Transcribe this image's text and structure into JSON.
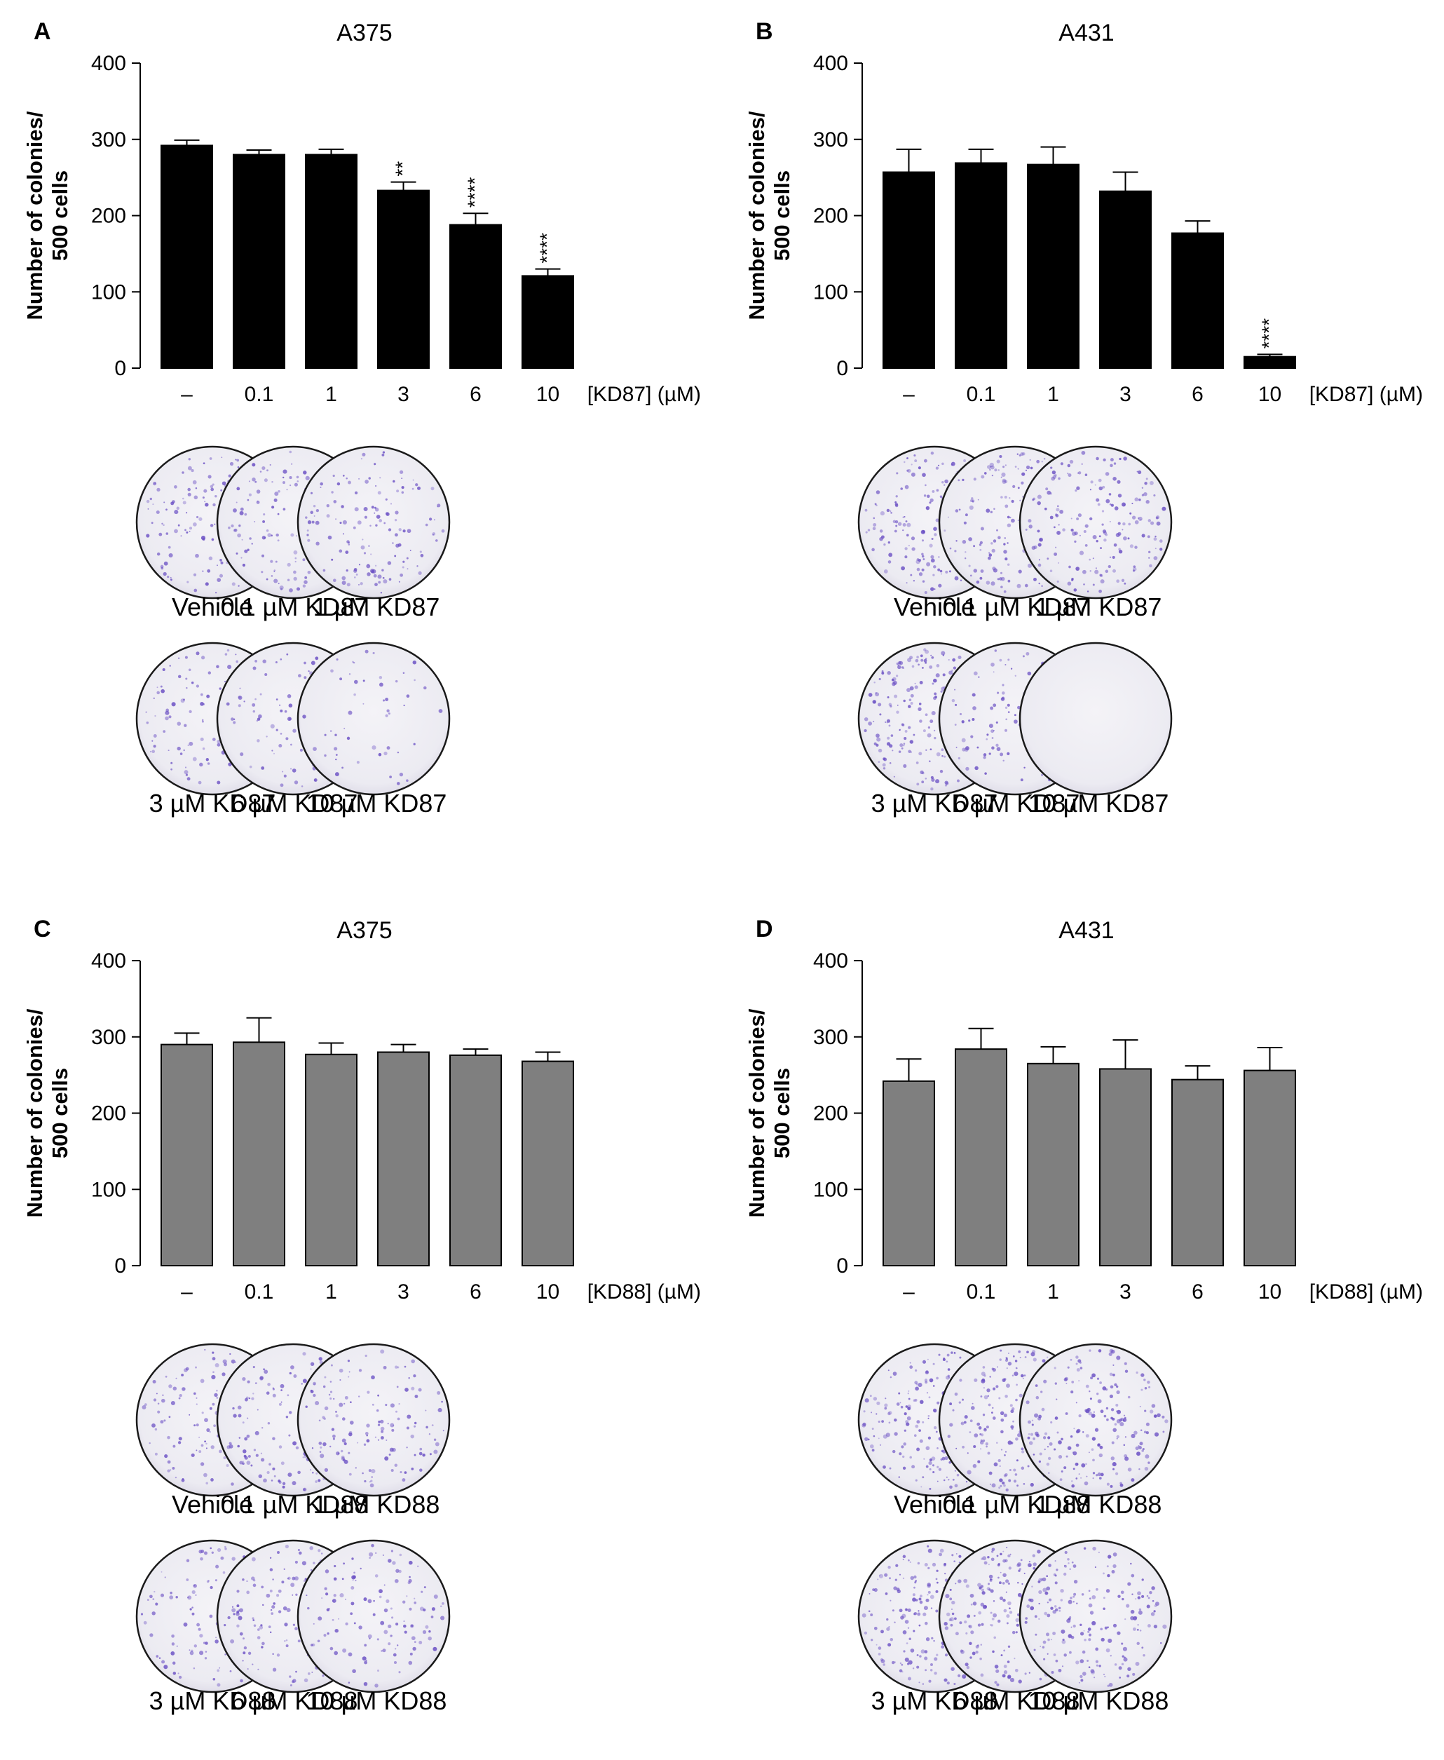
{
  "chart_data": [
    {
      "panel": "A",
      "type": "bar",
      "title": "A375",
      "ylabel_lines": [
        "Number of colonies/",
        "500 cells"
      ],
      "xlabel": "[KD87] (µM)",
      "categories": [
        "–",
        "0.1",
        "1",
        "3",
        "6",
        "10"
      ],
      "values": [
        292,
        280,
        280,
        233,
        188,
        121
      ],
      "errors": [
        7,
        6,
        7,
        11,
        15,
        9
      ],
      "significance": [
        "",
        "",
        "",
        "**",
        "****",
        "****"
      ],
      "ylim": [
        0,
        400
      ],
      "yticks": [
        0,
        100,
        200,
        300,
        400
      ],
      "bar_color": "#000000",
      "plate_labels": [
        "Vehicle",
        "0.1 µM KD87",
        "1 µM KD87",
        "3 µM KD87",
        "6 µM KD87",
        "10 µM KD87"
      ],
      "colony_density": [
        0.6,
        0.55,
        0.55,
        0.45,
        0.35,
        0.2
      ]
    },
    {
      "panel": "B",
      "type": "bar",
      "title": "A431",
      "ylabel_lines": [
        "Number of colonies/",
        "500 cells"
      ],
      "xlabel": "[KD87] (µM)",
      "categories": [
        "–",
        "0.1",
        "1",
        "3",
        "6",
        "10"
      ],
      "values": [
        257,
        269,
        267,
        232,
        177,
        15
      ],
      "errors": [
        30,
        18,
        23,
        25,
        16,
        3
      ],
      "significance": [
        "",
        "",
        "",
        "",
        "",
        "****"
      ],
      "ylim": [
        0,
        400
      ],
      "yticks": [
        0,
        100,
        200,
        300,
        400
      ],
      "bar_color": "#000000",
      "plate_labels": [
        "Vehicle",
        "0.1 µM KD87",
        "1 µM KD87",
        "3 µM KD87",
        "6 µM KD87",
        "10 µM KD87"
      ],
      "colony_density": [
        0.75,
        0.8,
        0.7,
        0.85,
        0.45,
        0.0
      ]
    },
    {
      "panel": "C",
      "type": "bar",
      "title": "A375",
      "ylabel_lines": [
        "Number of colonies/",
        "500 cells"
      ],
      "xlabel": "[KD88] (µM)",
      "categories": [
        "–",
        "0.1",
        "1",
        "3",
        "6",
        "10"
      ],
      "values": [
        290,
        293,
        277,
        280,
        276,
        268
      ],
      "errors": [
        15,
        32,
        15,
        10,
        8,
        12
      ],
      "significance": [
        "",
        "",
        "",
        "",
        "",
        ""
      ],
      "ylim": [
        0,
        400
      ],
      "yticks": [
        0,
        100,
        200,
        300,
        400
      ],
      "bar_color": "#7f7f7f",
      "plate_labels": [
        "Vehicle",
        "0.1 µM KD88",
        "1 µM KD88",
        "3 µM KD88",
        "6 µM KD88",
        "10 µM KD88"
      ],
      "colony_density": [
        0.55,
        0.6,
        0.55,
        0.5,
        0.55,
        0.5
      ]
    },
    {
      "panel": "D",
      "type": "bar",
      "title": "A431",
      "ylabel_lines": [
        "Number of colonies/",
        "500 cells"
      ],
      "xlabel": "[KD88] (µM)",
      "categories": [
        "–",
        "0.1",
        "1",
        "3",
        "6",
        "10"
      ],
      "values": [
        242,
        284,
        265,
        258,
        244,
        256
      ],
      "errors": [
        29,
        27,
        22,
        38,
        18,
        30
      ],
      "significance": [
        "",
        "",
        "",
        "",
        "",
        ""
      ],
      "ylim": [
        0,
        400
      ],
      "yticks": [
        0,
        100,
        200,
        300,
        400
      ],
      "bar_color": "#7f7f7f",
      "plate_labels": [
        "Vehicle",
        "0.1 µM KD88",
        "1 µM KD88",
        "3 µM KD88",
        "6 µM KD88",
        "10 µM KD88"
      ],
      "colony_density": [
        0.85,
        0.85,
        0.8,
        0.85,
        0.9,
        0.75
      ]
    }
  ],
  "colors": {
    "stain": "#6a4fc4",
    "plate_fill": "#ecebf2",
    "plate_rim": "#1a1a1a"
  }
}
